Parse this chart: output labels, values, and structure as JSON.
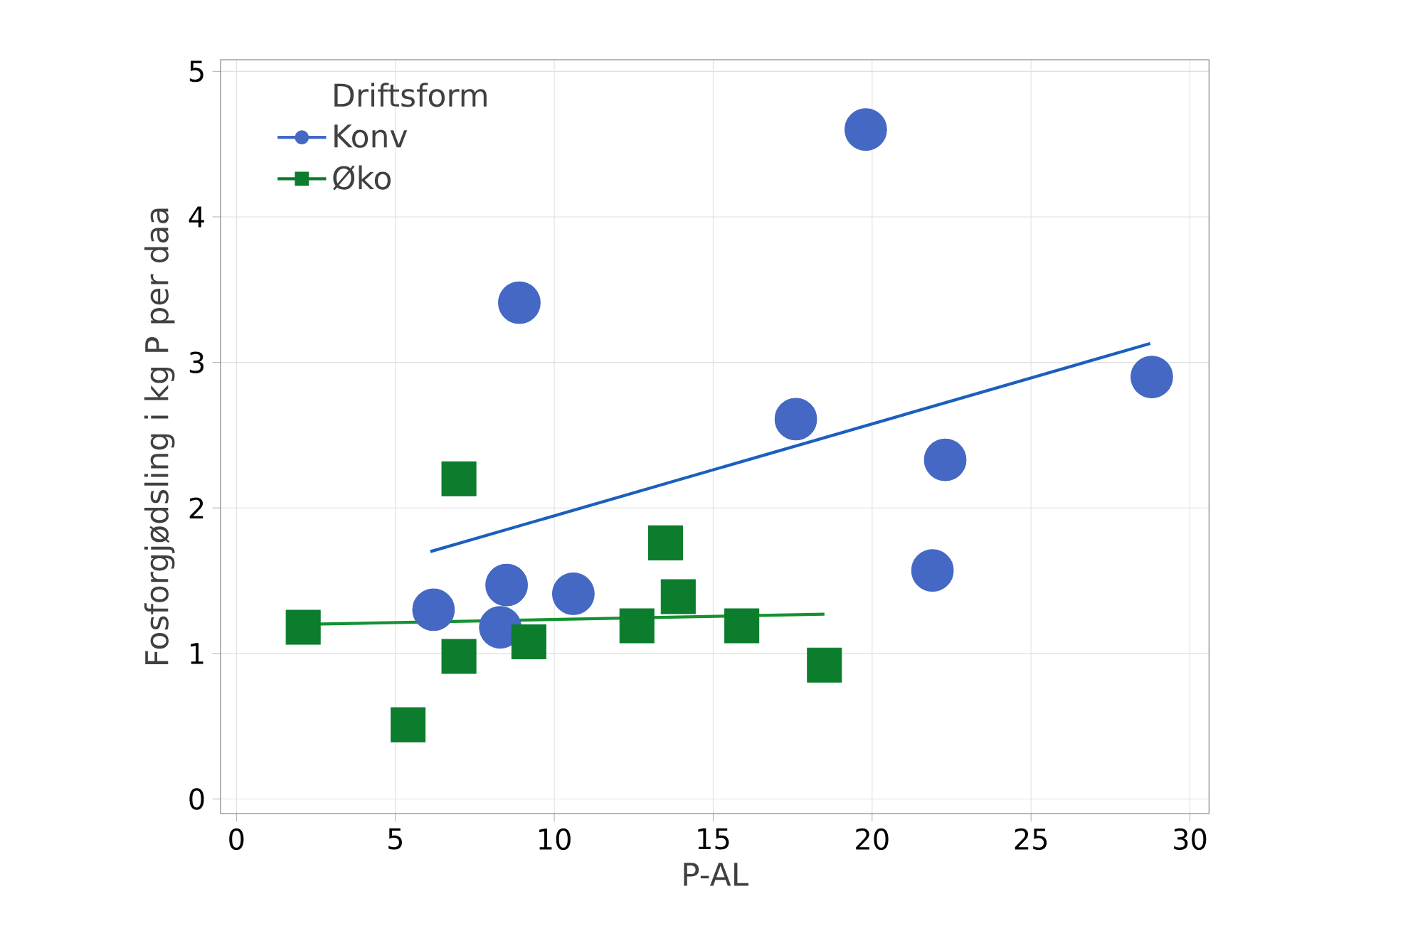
{
  "chart_data": {
    "type": "scatter",
    "xlabel": "P-AL",
    "ylabel": "Fosforgjødsling i kg P per daa",
    "legend_title": "Driftsform",
    "legend": "top left",
    "grid": true,
    "xlim": [
      -0.5,
      30.6
    ],
    "ylim": [
      -0.1,
      5.08
    ],
    "xticks": [
      0,
      5,
      10,
      15,
      20,
      25,
      30
    ],
    "yticks": [
      0,
      1,
      2,
      3,
      4,
      5
    ],
    "series": [
      {
        "name": "Konv",
        "marker": "circle",
        "color": "#4468c4",
        "x": [
          6.2,
          8.5,
          8.3,
          8.9,
          10.6,
          17.6,
          19.8,
          21.9,
          22.3,
          28.8
        ],
        "values": [
          1.3,
          1.47,
          1.18,
          3.41,
          1.41,
          2.61,
          4.6,
          1.57,
          2.33,
          2.9
        ]
      },
      {
        "name": "Øko",
        "marker": "square",
        "color": "#0b7d2c",
        "x": [
          2.1,
          5.4,
          7.0,
          7.0,
          9.2,
          12.6,
          13.5,
          13.9,
          15.9,
          18.5
        ],
        "values": [
          1.18,
          0.51,
          2.2,
          0.98,
          1.08,
          1.19,
          1.76,
          1.39,
          1.19,
          0.92
        ]
      },
      {
        "type": "line",
        "line_style": "solid",
        "color": "#1c5fbd",
        "x": [
          6.1,
          28.75
        ],
        "values": [
          1.7,
          3.13
        ]
      },
      {
        "type": "line",
        "line_style": "solid",
        "color": "#13922f",
        "x": [
          2.1,
          18.5
        ],
        "values": [
          1.2,
          1.27
        ]
      }
    ]
  }
}
